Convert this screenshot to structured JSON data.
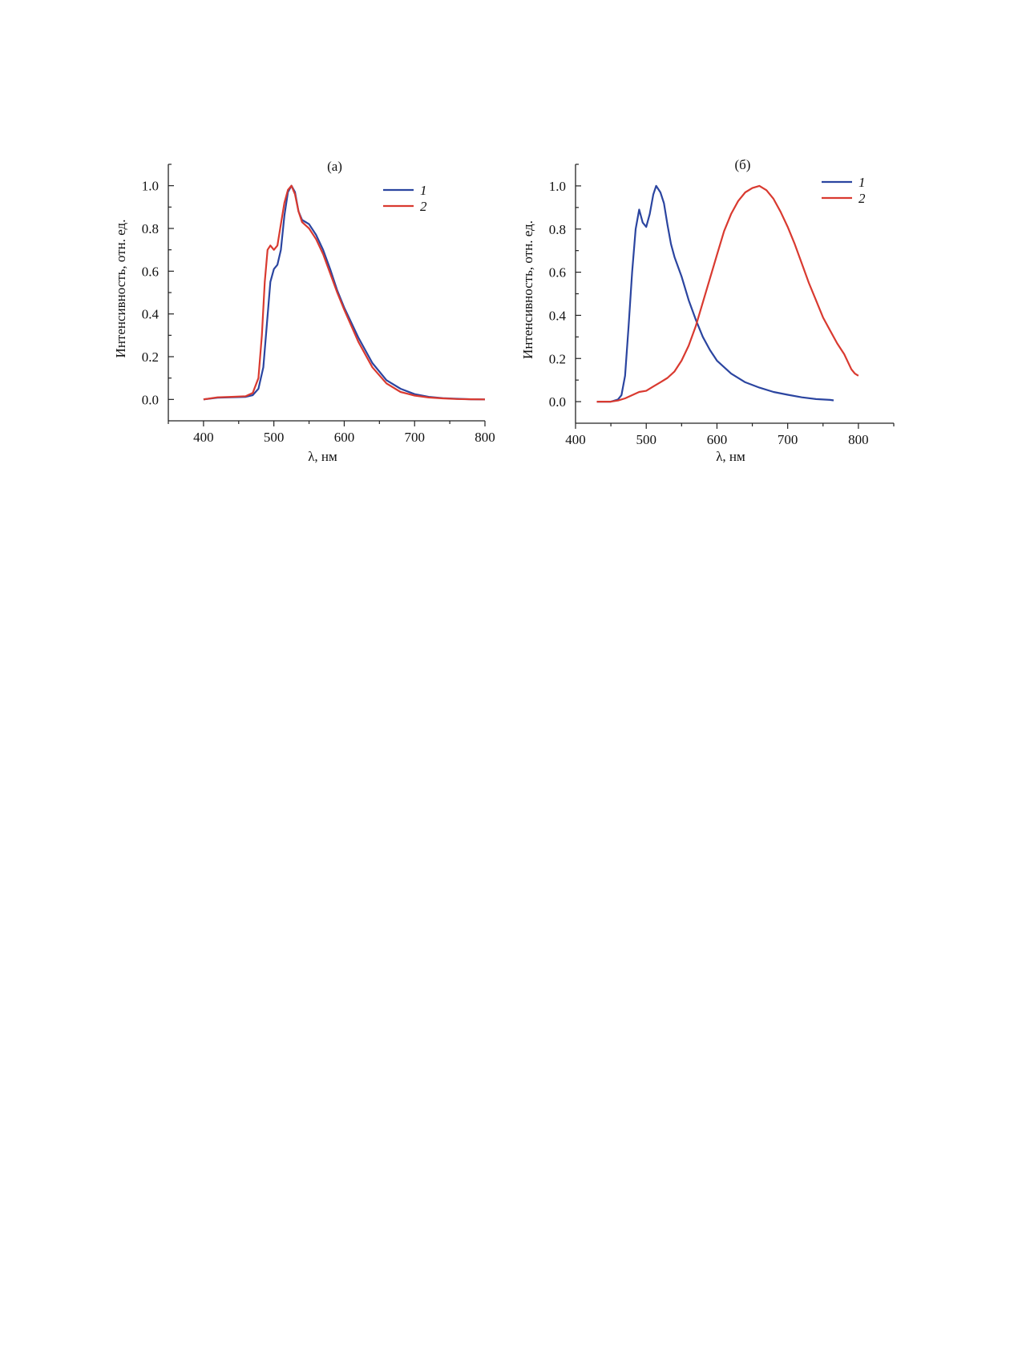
{
  "chart_data": [
    {
      "type": "line",
      "title": "(а)",
      "xlabel": "λ, нм",
      "ylabel": "Интенсивность, отн. ед.",
      "xlim": [
        350,
        800
      ],
      "ylim": [
        -0.1,
        1.1
      ],
      "xticks": [
        400,
        500,
        600,
        700,
        800
      ],
      "xtick_labels": [
        "400",
        "500",
        "600",
        "700",
        "800"
      ],
      "yticks": [
        0.0,
        0.2,
        0.4,
        0.6,
        0.8,
        1.0
      ],
      "ytick_labels": [
        "0.0",
        "0.2",
        "0.4",
        "0.6",
        "0.8",
        "1.0"
      ],
      "legend_position": "top-right",
      "grid": false,
      "series": [
        {
          "name": "1",
          "color": "#2b45a0",
          "points": [
            [
              400,
              0.0
            ],
            [
              420,
              0.008
            ],
            [
              440,
              0.01
            ],
            [
              460,
              0.012
            ],
            [
              470,
              0.02
            ],
            [
              478,
              0.05
            ],
            [
              485,
              0.15
            ],
            [
              490,
              0.35
            ],
            [
              495,
              0.55
            ],
            [
              500,
              0.61
            ],
            [
              505,
              0.63
            ],
            [
              510,
              0.7
            ],
            [
              515,
              0.86
            ],
            [
              520,
              0.97
            ],
            [
              525,
              1.0
            ],
            [
              530,
              0.97
            ],
            [
              535,
              0.88
            ],
            [
              540,
              0.84
            ],
            [
              545,
              0.83
            ],
            [
              550,
              0.82
            ],
            [
              560,
              0.77
            ],
            [
              570,
              0.7
            ],
            [
              580,
              0.61
            ],
            [
              590,
              0.51
            ],
            [
              600,
              0.43
            ],
            [
              620,
              0.29
            ],
            [
              640,
              0.17
            ],
            [
              660,
              0.09
            ],
            [
              680,
              0.05
            ],
            [
              700,
              0.025
            ],
            [
              720,
              0.012
            ],
            [
              740,
              0.006
            ],
            [
              760,
              0.003
            ],
            [
              780,
              0.001
            ],
            [
              800,
              0.0
            ]
          ]
        },
        {
          "name": "2",
          "color": "#d93a30",
          "points": [
            [
              400,
              0.0
            ],
            [
              420,
              0.01
            ],
            [
              440,
              0.012
            ],
            [
              460,
              0.015
            ],
            [
              470,
              0.03
            ],
            [
              478,
              0.1
            ],
            [
              483,
              0.3
            ],
            [
              487,
              0.55
            ],
            [
              491,
              0.7
            ],
            [
              495,
              0.72
            ],
            [
              500,
              0.7
            ],
            [
              505,
              0.72
            ],
            [
              510,
              0.82
            ],
            [
              515,
              0.92
            ],
            [
              520,
              0.98
            ],
            [
              525,
              1.0
            ],
            [
              530,
              0.96
            ],
            [
              535,
              0.88
            ],
            [
              540,
              0.83
            ],
            [
              550,
              0.8
            ],
            [
              560,
              0.75
            ],
            [
              570,
              0.68
            ],
            [
              580,
              0.59
            ],
            [
              590,
              0.5
            ],
            [
              600,
              0.42
            ],
            [
              620,
              0.27
            ],
            [
              640,
              0.15
            ],
            [
              660,
              0.075
            ],
            [
              680,
              0.035
            ],
            [
              700,
              0.018
            ],
            [
              720,
              0.009
            ],
            [
              740,
              0.005
            ],
            [
              760,
              0.002
            ],
            [
              780,
              0.001
            ],
            [
              800,
              0.0
            ]
          ]
        }
      ]
    },
    {
      "type": "line",
      "title": "(б)",
      "xlabel": "λ, нм",
      "ylabel": "Интенсивность, отн. ед.",
      "xlim": [
        400,
        850
      ],
      "ylim": [
        -0.1,
        1.1
      ],
      "xticks": [
        400,
        500,
        600,
        700,
        800
      ],
      "xtick_labels": [
        "400",
        "500",
        "600",
        "700",
        "800"
      ],
      "yticks": [
        0.0,
        0.2,
        0.4,
        0.6,
        0.8,
        1.0
      ],
      "ytick_labels": [
        "0.0",
        "0.2",
        "0.4",
        "0.6",
        "0.8",
        "1.0"
      ],
      "legend_position": "top-right",
      "grid": false,
      "series": [
        {
          "name": "1",
          "color": "#2b45a0",
          "points": [
            [
              430,
              0.0
            ],
            [
              450,
              0.0
            ],
            [
              460,
              0.01
            ],
            [
              465,
              0.03
            ],
            [
              470,
              0.12
            ],
            [
              475,
              0.35
            ],
            [
              480,
              0.6
            ],
            [
              485,
              0.8
            ],
            [
              490,
              0.89
            ],
            [
              495,
              0.83
            ],
            [
              500,
              0.81
            ],
            [
              505,
              0.87
            ],
            [
              510,
              0.96
            ],
            [
              514,
              1.0
            ],
            [
              520,
              0.97
            ],
            [
              525,
              0.92
            ],
            [
              530,
              0.82
            ],
            [
              535,
              0.73
            ],
            [
              540,
              0.67
            ],
            [
              550,
              0.58
            ],
            [
              560,
              0.47
            ],
            [
              570,
              0.38
            ],
            [
              580,
              0.3
            ],
            [
              590,
              0.24
            ],
            [
              600,
              0.19
            ],
            [
              620,
              0.13
            ],
            [
              640,
              0.09
            ],
            [
              660,
              0.065
            ],
            [
              680,
              0.045
            ],
            [
              700,
              0.032
            ],
            [
              720,
              0.02
            ],
            [
              740,
              0.012
            ],
            [
              760,
              0.008
            ],
            [
              765,
              0.006
            ]
          ]
        },
        {
          "name": "2",
          "color": "#d93a30",
          "points": [
            [
              430,
              0.0
            ],
            [
              450,
              0.0
            ],
            [
              460,
              0.005
            ],
            [
              470,
              0.015
            ],
            [
              480,
              0.03
            ],
            [
              490,
              0.045
            ],
            [
              500,
              0.05
            ],
            [
              510,
              0.07
            ],
            [
              520,
              0.09
            ],
            [
              530,
              0.11
            ],
            [
              540,
              0.14
            ],
            [
              550,
              0.19
            ],
            [
              560,
              0.26
            ],
            [
              570,
              0.35
            ],
            [
              580,
              0.46
            ],
            [
              590,
              0.57
            ],
            [
              600,
              0.68
            ],
            [
              610,
              0.79
            ],
            [
              620,
              0.87
            ],
            [
              630,
              0.93
            ],
            [
              640,
              0.97
            ],
            [
              650,
              0.99
            ],
            [
              660,
              1.0
            ],
            [
              670,
              0.98
            ],
            [
              680,
              0.94
            ],
            [
              690,
              0.88
            ],
            [
              700,
              0.81
            ],
            [
              710,
              0.73
            ],
            [
              720,
              0.64
            ],
            [
              730,
              0.55
            ],
            [
              740,
              0.47
            ],
            [
              750,
              0.39
            ],
            [
              760,
              0.33
            ],
            [
              770,
              0.27
            ],
            [
              780,
              0.22
            ],
            [
              790,
              0.15
            ],
            [
              795,
              0.13
            ],
            [
              800,
              0.12
            ]
          ]
        }
      ]
    }
  ]
}
